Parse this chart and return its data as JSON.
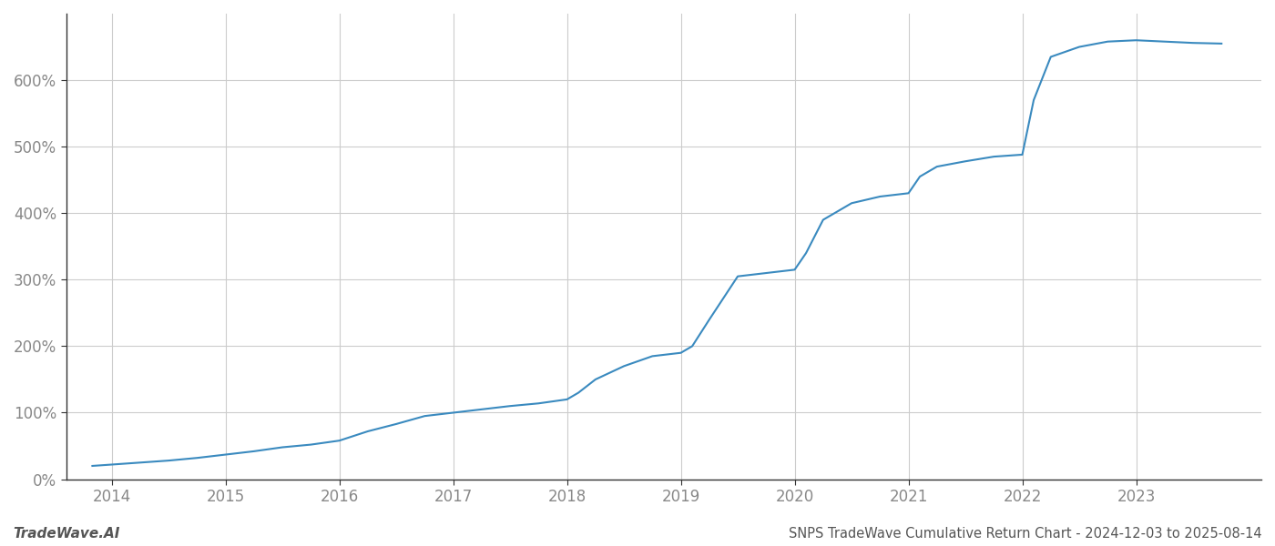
{
  "title": "SNPS TradeWave Cumulative Return Chart - 2024-12-03 to 2025-08-14",
  "watermark": "TradeWave.AI",
  "line_color": "#3a8abf",
  "background_color": "#ffffff",
  "grid_color": "#cccccc",
  "x_years": [
    2014,
    2015,
    2016,
    2017,
    2018,
    2019,
    2020,
    2021,
    2022,
    2023
  ],
  "x_data": [
    2013.83,
    2014.0,
    2014.25,
    2014.5,
    2014.75,
    2015.0,
    2015.25,
    2015.5,
    2015.75,
    2016.0,
    2016.25,
    2016.5,
    2016.75,
    2017.0,
    2017.1,
    2017.25,
    2017.5,
    2017.75,
    2018.0,
    2018.1,
    2018.25,
    2018.5,
    2018.75,
    2019.0,
    2019.1,
    2019.25,
    2019.5,
    2019.75,
    2020.0,
    2020.1,
    2020.25,
    2020.5,
    2020.75,
    2021.0,
    2021.1,
    2021.25,
    2021.5,
    2021.75,
    2022.0,
    2022.1,
    2022.25,
    2022.5,
    2022.75,
    2023.0,
    2023.25,
    2023.5,
    2023.75
  ],
  "y_data": [
    20,
    22,
    25,
    28,
    32,
    37,
    42,
    48,
    52,
    58,
    72,
    83,
    95,
    100,
    102,
    105,
    110,
    114,
    120,
    130,
    150,
    170,
    185,
    190,
    200,
    240,
    305,
    310,
    315,
    340,
    390,
    415,
    425,
    430,
    455,
    470,
    478,
    485,
    488,
    570,
    635,
    650,
    658,
    660,
    658,
    656,
    655
  ],
  "ylim": [
    0,
    700
  ],
  "yticks": [
    0,
    100,
    200,
    300,
    400,
    500,
    600
  ],
  "xlim": [
    2013.6,
    2024.1
  ],
  "line_width": 1.5,
  "title_fontsize": 10.5,
  "tick_fontsize": 12,
  "watermark_fontsize": 11,
  "spine_color": "#333333",
  "tick_color": "#888888",
  "bottom_text_color": "#555555"
}
